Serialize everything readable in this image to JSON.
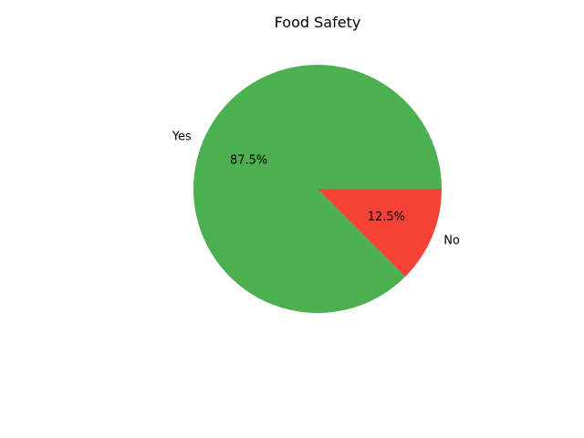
{
  "chart_data": {
    "type": "pie",
    "title": "Food Safety",
    "categories": [
      "Yes",
      "No"
    ],
    "values": [
      87.5,
      12.5
    ],
    "percent_labels": [
      "87.5%",
      "12.5%"
    ],
    "colors": [
      "#4caf50",
      "#f44336"
    ],
    "start_angle_deg": 0,
    "direction": "counterclockwise",
    "legend": "none"
  }
}
